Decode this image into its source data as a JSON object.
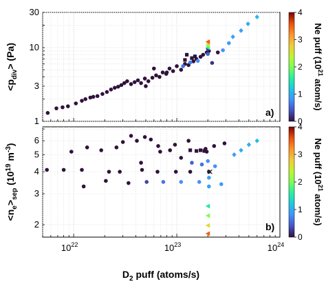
{
  "chart_data": [
    {
      "type": "scatter",
      "panel_label": "a)",
      "ylabel": "<p_div> (Pa)",
      "x_scale": "log",
      "y_scale": "log",
      "xlim": [
        5e+21,
        1e+24
      ],
      "ylim": [
        1,
        30
      ],
      "ytick_labels": [
        "1",
        "3",
        "10",
        "30"
      ],
      "grid": true,
      "colorbar": {
        "label": "Ne puff (10^21 atom/s)",
        "range": [
          0,
          4
        ],
        "ticks": [
          "0",
          "1",
          "2",
          "3",
          "4"
        ]
      },
      "series": [
        {
          "marker": "circle",
          "points": [
            [
              5.6e+21,
              1.3,
              0
            ],
            [
              6.8e+21,
              1.5,
              0
            ],
            [
              7.8e+21,
              1.55,
              0
            ],
            [
              8.8e+21,
              1.6,
              0
            ],
            [
              1.05e+22,
              1.75,
              0
            ],
            [
              1.2e+22,
              1.9,
              0
            ],
            [
              1.3e+22,
              2.0,
              0
            ],
            [
              1.45e+22,
              2.1,
              0
            ],
            [
              1.55e+22,
              2.15,
              0
            ],
            [
              1.7e+22,
              2.2,
              0
            ],
            [
              1.9e+22,
              2.35,
              0
            ],
            [
              2.1e+22,
              2.5,
              0
            ],
            [
              2.3e+22,
              2.7,
              0
            ],
            [
              2.5e+22,
              2.85,
              0
            ],
            [
              2.7e+22,
              2.95,
              0
            ],
            [
              2.9e+22,
              3.1,
              0
            ],
            [
              3.1e+22,
              3.3,
              0
            ],
            [
              3.3e+22,
              3.5,
              0
            ],
            [
              3.6e+22,
              3.2,
              0
            ],
            [
              3.9e+22,
              3.4,
              0
            ],
            [
              4.2e+22,
              3.6,
              0
            ],
            [
              4.5e+22,
              3.3,
              0
            ],
            [
              4.9e+22,
              3.8,
              0
            ],
            [
              5.3e+22,
              3.5,
              0
            ],
            [
              5.8e+22,
              3.9,
              0
            ],
            [
              6.3e+22,
              4.2,
              0
            ],
            [
              6.8e+22,
              4.0,
              0
            ],
            [
              7.3e+22,
              4.6,
              0
            ],
            [
              7.9e+22,
              4.4,
              0
            ],
            [
              8.5e+22,
              5.2,
              0
            ],
            [
              9.2e+22,
              4.8,
              0
            ],
            [
              1e+23,
              5.6,
              0
            ],
            [
              1.1e+23,
              5.0,
              0
            ],
            [
              1.2e+23,
              6.0,
              0
            ],
            [
              1.3e+23,
              5.8,
              0
            ],
            [
              1.45e+23,
              6.5,
              0
            ],
            [
              1.55e+23,
              7.0,
              0
            ],
            [
              1.7e+23,
              7.5,
              0
            ],
            [
              1.8e+23,
              8.0,
              0
            ],
            [
              1.95e+23,
              8.6,
              0
            ],
            [
              2.05e+23,
              9.0,
              0
            ],
            [
              5e+22,
              3.0,
              0
            ],
            [
              6e+22,
              5.2,
              0
            ],
            [
              8e+22,
              4.6,
              0
            ],
            [
              1.15e+23,
              5.6,
              0.6
            ],
            [
              1.35e+23,
              6.3,
              0.7
            ],
            [
              1.6e+23,
              6.6,
              0.8
            ],
            [
              2e+23,
              8.2,
              0.5
            ],
            [
              2e+23,
              9.6,
              0.3
            ],
            [
              2.2e+23,
              6.2,
              0.2
            ],
            [
              2.5e+23,
              8.6,
              0
            ],
            [
              2.8e+23,
              9.2,
              0.8
            ],
            [
              3.2e+23,
              11.5,
              0.9
            ]
          ]
        },
        {
          "marker": "square",
          "points": [
            [
              1.25e+23,
              8.0,
              0
            ],
            [
              1.4e+23,
              7.2,
              0
            ],
            [
              1.2e+23,
              6.8,
              0
            ],
            [
              1.5e+23,
              7.6,
              0
            ]
          ]
        },
        {
          "marker": "diamond",
          "points": [
            [
              3.5e+23,
              14,
              0.9
            ],
            [
              4.2e+23,
              17,
              0.9
            ],
            [
              4.9e+23,
              21,
              1.0
            ],
            [
              6e+23,
              26,
              1.1
            ]
          ]
        },
        {
          "marker": "triangle-left",
          "points": [
            [
              2e+23,
              10.0,
              1.5
            ],
            [
              2e+23,
              10.6,
              2.0
            ],
            [
              2e+23,
              11.2,
              2.6
            ],
            [
              2e+23,
              12.0,
              3.5
            ]
          ]
        }
      ]
    },
    {
      "type": "scatter",
      "panel_label": "b)",
      "ylabel": "<n_e>_sep (10^19 m^-3)",
      "xlabel": "D_2 puff (atoms/s)",
      "x_scale": "log",
      "y_scale": "log",
      "xlim": [
        5e+21,
        1e+24
      ],
      "ylim": [
        1.7,
        7.2
      ],
      "ytick_labels": [
        "2",
        "3",
        "4",
        "5",
        "6"
      ],
      "xtick_labels": [
        "10^22",
        "10^23",
        "10^24"
      ],
      "grid": true,
      "colorbar": {
        "label": "Ne puff (10^21 atom/s)",
        "range": [
          0,
          4
        ],
        "ticks": [
          "0",
          "1",
          "2",
          "3",
          "4"
        ]
      },
      "series": [
        {
          "marker": "circle",
          "points": [
            [
              5.5e+21,
              4.1,
              0
            ],
            [
              9.5e+21,
              5.2,
              0
            ],
            [
              1.35e+22,
              5.5,
              0
            ],
            [
              1.85e+22,
              5.3,
              0
            ],
            [
              2.6e+22,
              5.5,
              0
            ],
            [
              3e+22,
              5.9,
              0
            ],
            [
              3.6e+22,
              6.4,
              0
            ],
            [
              4.1e+22,
              6.0,
              0
            ],
            [
              4.9e+22,
              6.3,
              0
            ],
            [
              5.6e+22,
              6.1,
              0
            ],
            [
              6.6e+22,
              5.6,
              0
            ],
            [
              6.9e+22,
              5.2,
              0
            ],
            [
              8.6e+22,
              5.3,
              0
            ],
            [
              9.6e+22,
              5.7,
              0
            ],
            [
              1.1e+23,
              4.8,
              0
            ],
            [
              1.3e+23,
              6.0,
              0
            ],
            [
              1.9e+23,
              5.4,
              0
            ],
            [
              2.3e+23,
              5.6,
              0
            ],
            [
              2.9e+23,
              5.8,
              0
            ],
            [
              8e+21,
              4.1,
              0
            ],
            [
              1.2e+22,
              4.1,
              0
            ],
            [
              2.2e+22,
              4.0,
              0
            ],
            [
              2.8e+22,
              4.0,
              0
            ],
            [
              4.6e+22,
              4.1,
              0
            ],
            [
              6.5e+22,
              4.0,
              0
            ],
            [
              9.8e+22,
              4.0,
              0
            ],
            [
              1.35e+23,
              4.0,
              0
            ],
            [
              2.05e+23,
              4.0,
              0
            ],
            [
              4.5e+22,
              4.5,
              0
            ],
            [
              1.4e+23,
              4.5,
              0.5
            ],
            [
              1.25e+22,
              3.3,
              0
            ],
            [
              2.05e+22,
              3.55,
              0
            ],
            [
              3.4e+22,
              3.45,
              0
            ],
            [
              5.1e+22,
              3.5,
              0.3
            ],
            [
              7.4e+22,
              3.5,
              0.6
            ],
            [
              1.1e+23,
              3.5,
              0.8
            ],
            [
              1.65e+23,
              3.5,
              0.8
            ],
            [
              2.05e+23,
              3.3,
              0.9
            ],
            [
              2.05e+23,
              3.7,
              0.9
            ],
            [
              2.35e+23,
              4.3,
              0.8
            ],
            [
              2e+23,
              4.6,
              0.8
            ],
            [
              2.7e+23,
              3.4,
              0.9
            ],
            [
              1.95e+23,
              5.2,
              0
            ],
            [
              1.75e+23,
              4.4,
              0.6
            ]
          ]
        },
        {
          "marker": "square",
          "points": [
            [
              1.35e+23,
              5.3,
              0
            ],
            [
              1.55e+23,
              5.25,
              0
            ],
            [
              1.7e+23,
              5.3,
              0
            ],
            [
              1.85e+23,
              5.25,
              0
            ]
          ]
        },
        {
          "marker": "diamond",
          "points": [
            [
              3.6e+23,
              5.0,
              0.9
            ],
            [
              4.2e+23,
              5.3,
              1.0
            ],
            [
              5e+23,
              5.7,
              1.0
            ],
            [
              6e+23,
              6.0,
              1.1
            ]
          ]
        },
        {
          "marker": "cross",
          "points": [
            [
              2.1e+23,
              4.0,
              0
            ]
          ]
        },
        {
          "marker": "triangle-left",
          "points": [
            [
              2e+23,
              2.55,
              1.5
            ],
            [
              2e+23,
              2.25,
              2.0
            ],
            [
              2e+23,
              1.98,
              2.6
            ],
            [
              2e+23,
              1.78,
              3.5
            ]
          ]
        }
      ]
    }
  ]
}
